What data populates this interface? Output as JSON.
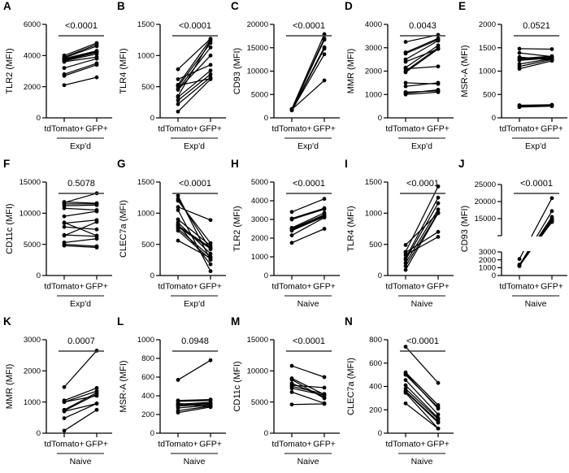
{
  "figure": {
    "background": "#ffffff",
    "colors": {
      "points": "#000000",
      "lines": "#000000",
      "axis": "#000000",
      "significance_bar": "#3a3a3a",
      "group_underline": "#3a3a3a",
      "text": "#000000"
    }
  },
  "chart_data": [
    {
      "type": "paired-line",
      "panel": "A",
      "ylabel": "TLR2 (MFI)",
      "xlabel": "",
      "p_value": "<0.0001",
      "group": "Exp'd",
      "categories": [
        "tdTomato+",
        "GFP+"
      ],
      "ylim": [
        0,
        6000
      ],
      "yticks": [
        0,
        2000,
        4000,
        6000
      ],
      "pairs": [
        [
          2100,
          2600
        ],
        [
          2700,
          3400
        ],
        [
          2800,
          3500
        ],
        [
          3200,
          3800
        ],
        [
          3600,
          3900
        ],
        [
          3650,
          4100
        ],
        [
          3700,
          4200
        ],
        [
          3750,
          4250
        ],
        [
          3800,
          4300
        ],
        [
          3850,
          4600
        ],
        [
          3900,
          4700
        ],
        [
          4000,
          4800
        ]
      ]
    },
    {
      "type": "paired-line",
      "panel": "B",
      "ylabel": "TLR4 (MFI)",
      "xlabel": "",
      "p_value": "<0.0001",
      "group": "Exp'd",
      "categories": [
        "tdTomato+",
        "GFP+"
      ],
      "ylim": [
        0,
        1500
      ],
      "yticks": [
        0,
        500,
        1000,
        1500
      ],
      "pairs": [
        [
          100,
          620
        ],
        [
          220,
          650
        ],
        [
          280,
          700
        ],
        [
          330,
          760
        ],
        [
          350,
          1240
        ],
        [
          450,
          1000
        ],
        [
          460,
          1130
        ],
        [
          500,
          1200
        ],
        [
          520,
          630
        ],
        [
          530,
          1260
        ],
        [
          620,
          850
        ],
        [
          780,
          1270
        ]
      ]
    },
    {
      "type": "paired-line",
      "panel": "C",
      "ylabel": "CD93 (MFI)",
      "xlabel": "",
      "p_value": "<0.0001",
      "group": "Exp'd",
      "categories": [
        "tdTomato+",
        "GFP+"
      ],
      "ylim": [
        0,
        20000
      ],
      "yticks": [
        0,
        5000,
        10000,
        15000,
        20000
      ],
      "pairs": [
        [
          1800,
          8000
        ],
        [
          1600,
          13600
        ],
        [
          1650,
          14800
        ],
        [
          1700,
          15000
        ],
        [
          1750,
          15100
        ],
        [
          1800,
          16700
        ],
        [
          1850,
          17000
        ],
        [
          1900,
          17900
        ]
      ]
    },
    {
      "type": "paired-line",
      "panel": "D",
      "ylabel": "MMR (MFI)",
      "xlabel": "",
      "p_value": "0.0043",
      "group": "Exp'd",
      "categories": [
        "tdTomato+",
        "GFP+"
      ],
      "ylim": [
        0,
        4000
      ],
      "yticks": [
        0,
        1000,
        2000,
        3000,
        4000
      ],
      "pairs": [
        [
          1000,
          1100
        ],
        [
          1050,
          1200
        ],
        [
          1100,
          1150
        ],
        [
          1350,
          1500
        ],
        [
          1500,
          1450
        ],
        [
          1950,
          2950
        ],
        [
          2000,
          3000
        ],
        [
          2100,
          2200
        ],
        [
          2150,
          3100
        ],
        [
          2400,
          2950
        ],
        [
          2500,
          3300
        ],
        [
          2750,
          3350
        ],
        [
          2800,
          3400
        ],
        [
          3250,
          3550
        ]
      ]
    },
    {
      "type": "paired-line",
      "panel": "E",
      "ylabel": "MSR-A (MFI)",
      "xlabel": "",
      "p_value": "0.0521",
      "group": "Exp'd",
      "categories": [
        "tdTomato+",
        "GFP+"
      ],
      "ylim": [
        0,
        2000
      ],
      "yticks": [
        0,
        500,
        1000,
        1500,
        2000
      ],
      "pairs": [
        [
          230,
          250
        ],
        [
          250,
          265
        ],
        [
          270,
          280
        ],
        [
          1050,
          1220
        ],
        [
          1100,
          1250
        ],
        [
          1150,
          1270
        ],
        [
          1230,
          1280
        ],
        [
          1250,
          1300
        ],
        [
          1270,
          1320
        ],
        [
          1300,
          1240
        ],
        [
          1390,
          1310
        ],
        [
          1480,
          1470
        ]
      ]
    },
    {
      "type": "paired-line",
      "panel": "F",
      "ylabel": "CD11c (MFI)",
      "xlabel": "",
      "p_value": "0.5078",
      "group": "Exp'd",
      "categories": [
        "tdTomato+",
        "GFP+"
      ],
      "ylim": [
        0,
        15000
      ],
      "yticks": [
        0,
        5000,
        10000,
        15000
      ],
      "pairs": [
        [
          4800,
          4500
        ],
        [
          5000,
          4700
        ],
        [
          5300,
          5900
        ],
        [
          6500,
          6300
        ],
        [
          6400,
          8600
        ],
        [
          8500,
          6400
        ],
        [
          7800,
          7400
        ],
        [
          8400,
          8900
        ],
        [
          9500,
          10300
        ],
        [
          10800,
          10500
        ],
        [
          11200,
          11300
        ],
        [
          11500,
          11500
        ],
        [
          11700,
          13200
        ],
        [
          11800,
          11600
        ]
      ]
    },
    {
      "type": "paired-line",
      "panel": "G",
      "ylabel": "CLEC7a (MFI)",
      "xlabel": "",
      "p_value": "<0.0001",
      "group": "Exp'd",
      "categories": [
        "tdTomato+",
        "GFP+"
      ],
      "ylim": [
        0,
        1500
      ],
      "yticks": [
        0,
        500,
        1000,
        1500
      ],
      "pairs": [
        [
          560,
          280
        ],
        [
          720,
          260
        ],
        [
          750,
          300
        ],
        [
          780,
          430
        ],
        [
          800,
          450
        ],
        [
          820,
          180
        ],
        [
          850,
          350
        ],
        [
          900,
          480
        ],
        [
          1050,
          70
        ],
        [
          1100,
          890
        ],
        [
          1200,
          520
        ],
        [
          1230,
          420
        ],
        [
          1280,
          250
        ]
      ]
    },
    {
      "type": "paired-line",
      "panel": "H",
      "ylabel": "TLR2 (MFI)",
      "xlabel": "",
      "p_value": "<0.0001",
      "group": "Naive",
      "categories": [
        "tdTomato+",
        "GFP+"
      ],
      "ylim": [
        0,
        5000
      ],
      "yticks": [
        0,
        1000,
        2000,
        3000,
        4000,
        5000
      ],
      "pairs": [
        [
          1750,
          2500
        ],
        [
          2150,
          3100
        ],
        [
          2400,
          3150
        ],
        [
          2450,
          3200
        ],
        [
          2500,
          3250
        ],
        [
          2550,
          3350
        ],
        [
          3000,
          3550
        ],
        [
          3050,
          3600
        ],
        [
          3400,
          4100
        ]
      ]
    },
    {
      "type": "paired-line",
      "panel": "I",
      "ylabel": "TLR4 (MFI)",
      "xlabel": "",
      "p_value": "<0.0001",
      "group": "Naive",
      "categories": [
        "tdTomato+",
        "GFP+"
      ],
      "ylim": [
        0,
        1500
      ],
      "yticks": [
        0,
        500,
        1000,
        1500
      ],
      "pairs": [
        [
          90,
          1000
        ],
        [
          150,
          1010
        ],
        [
          200,
          1060
        ],
        [
          250,
          1160
        ],
        [
          280,
          1250
        ],
        [
          330,
          620
        ],
        [
          370,
          700
        ],
        [
          380,
          1430
        ],
        [
          490,
          1000
        ]
      ]
    },
    {
      "type": "paired-line",
      "panel": "J",
      "ylabel": "CD93 (MFI)",
      "xlabel": "",
      "p_value": "<0.0001",
      "group": "Naive",
      "categories": [
        "tdTomato+",
        "GFP+"
      ],
      "broken_axis": {
        "lower": {
          "lim": [
            0,
            3000
          ],
          "ticks": [
            0,
            1000,
            2000,
            3000
          ]
        },
        "upper": {
          "lim": [
            10000,
            25000
          ],
          "ticks": [
            15000,
            20000,
            25000
          ]
        }
      },
      "pairs": [
        [
          2100,
          21000
        ],
        [
          1300,
          17200
        ],
        [
          1250,
          15500
        ],
        [
          1200,
          15000
        ],
        [
          1350,
          14800
        ],
        [
          1400,
          14500
        ],
        [
          1250,
          14200
        ],
        [
          1300,
          14000
        ]
      ]
    },
    {
      "type": "paired-line",
      "panel": "K",
      "ylabel": "MMR (MFI)",
      "xlabel": "",
      "p_value": "0.0007",
      "group": "Naive",
      "categories": [
        "tdTomato+",
        "GFP+"
      ],
      "ylim": [
        0,
        3000
      ],
      "yticks": [
        0,
        1000,
        2000,
        3000
      ],
      "pairs": [
        [
          80,
          750
        ],
        [
          480,
          950
        ],
        [
          700,
          950
        ],
        [
          720,
          1250
        ],
        [
          750,
          1300
        ],
        [
          1000,
          1200
        ],
        [
          1000,
          1350
        ],
        [
          1050,
          1450
        ],
        [
          1480,
          2650
        ]
      ]
    },
    {
      "type": "paired-line",
      "panel": "L",
      "ylabel": "MSR-A (MFI)",
      "xlabel": "",
      "p_value": "0.0948",
      "group": "Naive",
      "categories": [
        "tdTomato+",
        "GFP+"
      ],
      "ylim": [
        0,
        1000
      ],
      "yticks": [
        0,
        200,
        400,
        600,
        800,
        1000
      ],
      "pairs": [
        [
          570,
          780
        ],
        [
          220,
          280
        ],
        [
          240,
          290
        ],
        [
          270,
          300
        ],
        [
          290,
          310
        ],
        [
          300,
          320
        ],
        [
          310,
          330
        ],
        [
          320,
          280
        ],
        [
          340,
          350
        ],
        [
          350,
          360
        ]
      ]
    },
    {
      "type": "paired-line",
      "panel": "M",
      "ylabel": "CD11c (MFI)",
      "xlabel": "",
      "p_value": "<0.0001",
      "group": "Naive",
      "categories": [
        "tdTomato+",
        "GFP+"
      ],
      "ylim": [
        0,
        15000
      ],
      "yticks": [
        0,
        5000,
        10000,
        15000
      ],
      "pairs": [
        [
          4600,
          4700
        ],
        [
          6600,
          4800
        ],
        [
          7200,
          6100
        ],
        [
          7500,
          6300
        ],
        [
          7700,
          7300
        ],
        [
          8000,
          5800
        ],
        [
          8600,
          5600
        ],
        [
          8800,
          6200
        ],
        [
          10800,
          9000
        ]
      ]
    },
    {
      "type": "paired-line",
      "panel": "N",
      "ylabel": "CLEC7a (MFI)",
      "xlabel": "",
      "p_value": "<0.0001",
      "group": "Naive",
      "categories": [
        "tdTomato+",
        "GFP+"
      ],
      "ylim": [
        0,
        800
      ],
      "yticks": [
        0,
        200,
        400,
        600,
        800
      ],
      "pairs": [
        [
          740,
          430
        ],
        [
          520,
          240
        ],
        [
          510,
          210
        ],
        [
          500,
          220
        ],
        [
          455,
          160
        ],
        [
          410,
          130
        ],
        [
          380,
          120
        ],
        [
          360,
          100
        ],
        [
          355,
          90
        ],
        [
          345,
          40
        ],
        [
          255,
          40
        ]
      ]
    }
  ]
}
